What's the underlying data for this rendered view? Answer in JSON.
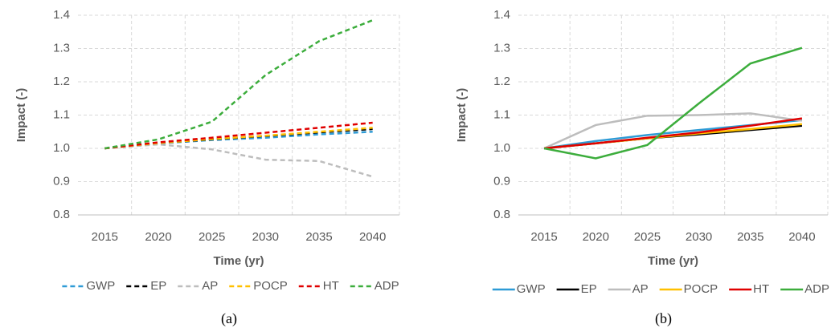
{
  "chart_data": [
    {
      "type": "line",
      "line_style": "dashed",
      "caption": "(a)",
      "x_label": "Time (yr)",
      "y_label": "Impact (-)",
      "categories": [
        2015,
        2020,
        2025,
        2030,
        2035,
        2040
      ],
      "ylim": [
        0.8,
        1.4
      ],
      "yticks": [
        0.8,
        0.9,
        {
          "value": 1,
          "label": "1.0"
        },
        1.1,
        1.2,
        1.3,
        1.4
      ],
      "grid": true,
      "series": [
        {
          "name": "GWP",
          "color": "#2e9bd6",
          "values": [
            1.0,
            1.015,
            1.025,
            1.032,
            1.042,
            1.05
          ]
        },
        {
          "name": "EP",
          "color": "#000000",
          "values": [
            1.0,
            1.016,
            1.027,
            1.037,
            1.048,
            1.058
          ]
        },
        {
          "name": "AP",
          "color": "#bdbdbd",
          "values": [
            1.0,
            1.012,
            0.997,
            0.966,
            0.962,
            0.915
          ]
        },
        {
          "name": "POCP",
          "color": "#ffc000",
          "values": [
            1.0,
            1.016,
            1.028,
            1.038,
            1.05,
            1.062
          ]
        },
        {
          "name": "HT",
          "color": "#e00000",
          "values": [
            1.0,
            1.018,
            1.032,
            1.047,
            1.062,
            1.077
          ]
        },
        {
          "name": "ADP",
          "color": "#3cad3c",
          "values": [
            1.0,
            1.027,
            1.08,
            1.22,
            1.322,
            1.385
          ]
        }
      ]
    },
    {
      "type": "line",
      "line_style": "solid",
      "caption": "(b)",
      "x_label": "Time (yr)",
      "y_label": "Impact (-)",
      "categories": [
        2015,
        2020,
        2025,
        2030,
        2035,
        2040
      ],
      "ylim": [
        0.8,
        1.4
      ],
      "yticks": [
        0.8,
        0.9,
        {
          "value": 1,
          "label": "1.0"
        },
        1.1,
        1.2,
        1.3,
        1.4
      ],
      "grid": true,
      "series": [
        {
          "name": "GWP",
          "color": "#2e9bd6",
          "values": [
            1.0,
            1.022,
            1.04,
            1.055,
            1.07,
            1.085
          ]
        },
        {
          "name": "EP",
          "color": "#000000",
          "values": [
            1.0,
            1.015,
            1.03,
            1.042,
            1.055,
            1.068
          ]
        },
        {
          "name": "AP",
          "color": "#bdbdbd",
          "values": [
            1.0,
            1.07,
            1.098,
            1.1,
            1.105,
            1.083
          ]
        },
        {
          "name": "POCP",
          "color": "#ffc000",
          "values": [
            1.0,
            1.015,
            1.03,
            1.045,
            1.058,
            1.073
          ]
        },
        {
          "name": "HT",
          "color": "#e00000",
          "values": [
            1.0,
            1.015,
            1.032,
            1.048,
            1.068,
            1.09
          ]
        },
        {
          "name": "ADP",
          "color": "#3cad3c",
          "values": [
            1.0,
            0.97,
            1.01,
            1.135,
            1.255,
            1.302
          ]
        }
      ]
    }
  ]
}
